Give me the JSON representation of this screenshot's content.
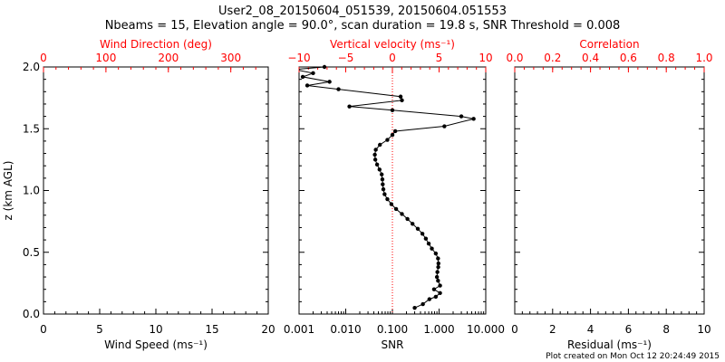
{
  "header": {
    "title_line1": "User2_08_20150604_051539, 20150604.051553",
    "title_line2": "Nbeams = 15, Elevation angle = 90.0°, scan duration = 19.8 s, SNR Threshold = 0.008"
  },
  "footer": {
    "plot_created": "Plot created on Mon Oct 12 20:24:49 2015"
  },
  "colors": {
    "axis": "#000000",
    "top_axis": "#ff0000",
    "reference_line": "#ff0000"
  },
  "chart_data": [
    {
      "type": "scatter",
      "panel": "left",
      "ylabel": "z (km AGL)",
      "ylim": [
        0,
        2.0
      ],
      "yticks": [
        "0.0",
        "0.5",
        "1.0",
        "1.5",
        "2.0"
      ],
      "xlabel": "Wind Speed (ms⁻¹)",
      "xlim": [
        0,
        20
      ],
      "xticks": [
        "0",
        "5",
        "10",
        "15",
        "20"
      ],
      "top_xlabel": "Wind Direction (deg)",
      "top_xlim": [
        0,
        360
      ],
      "top_xticks": [
        "0",
        "100",
        "200",
        "300"
      ],
      "series": []
    },
    {
      "type": "line",
      "panel": "middle",
      "ylim": [
        0,
        2.0
      ],
      "xlabel": "SNR",
      "xscale": "log",
      "xlim": [
        0.001,
        10
      ],
      "xticks": [
        "0.001",
        "0.010",
        "0.100",
        "1.000",
        "10.000"
      ],
      "top_xlabel": "Vertical velocity (ms⁻¹)",
      "top_xlim": [
        -10,
        10
      ],
      "top_xticks": [
        "−10",
        "−5",
        "0",
        "5",
        "10"
      ],
      "reference_line_x": 0.1,
      "series": [
        {
          "axis": "SNR",
          "points": [
            [
              0.3,
              0.05
            ],
            [
              0.45,
              0.08
            ],
            [
              0.62,
              0.12
            ],
            [
              0.85,
              0.14
            ],
            [
              1.05,
              0.17
            ],
            [
              0.78,
              0.2
            ],
            [
              1.05,
              0.23
            ],
            [
              0.95,
              0.27
            ],
            [
              0.9,
              0.3
            ],
            [
              0.92,
              0.34
            ],
            [
              0.96,
              0.38
            ],
            [
              0.97,
              0.41
            ],
            [
              0.95,
              0.45
            ],
            [
              0.85,
              0.49
            ],
            [
              0.7,
              0.53
            ],
            [
              0.6,
              0.57
            ],
            [
              0.52,
              0.61
            ],
            [
              0.44,
              0.65
            ],
            [
              0.35,
              0.69
            ],
            [
              0.27,
              0.73
            ],
            [
              0.21,
              0.77
            ],
            [
              0.16,
              0.81
            ],
            [
              0.12,
              0.85
            ],
            [
              0.095,
              0.89
            ],
            [
              0.078,
              0.93
            ],
            [
              0.068,
              0.97
            ],
            [
              0.064,
              1.01
            ],
            [
              0.062,
              1.05
            ],
            [
              0.061,
              1.09
            ],
            [
              0.059,
              1.13
            ],
            [
              0.053,
              1.17
            ],
            [
              0.047,
              1.21
            ],
            [
              0.043,
              1.25
            ],
            [
              0.042,
              1.29
            ],
            [
              0.044,
              1.33
            ],
            [
              0.054,
              1.37
            ],
            [
              0.078,
              1.41
            ],
            [
              0.1,
              1.45
            ],
            [
              0.115,
              1.48
            ],
            [
              1.3,
              1.52
            ],
            [
              5.5,
              1.58
            ],
            [
              3.0,
              1.6
            ],
            [
              0.1,
              1.65
            ],
            [
              0.012,
              1.68
            ],
            [
              0.16,
              1.73
            ],
            [
              0.15,
              1.76
            ],
            [
              0.007,
              1.82
            ],
            [
              0.0015,
              1.85
            ],
            [
              0.0045,
              1.88
            ],
            [
              0.0012,
              1.92
            ],
            [
              0.002,
              1.95
            ],
            [
              0.0008,
              1.98
            ],
            [
              0.0035,
              2.0
            ]
          ]
        }
      ]
    },
    {
      "type": "scatter",
      "panel": "right",
      "ylim": [
        0,
        2.0
      ],
      "xlabel": "Residual (ms⁻¹)",
      "xlim": [
        0,
        10
      ],
      "xticks": [
        "0",
        "2",
        "4",
        "6",
        "8",
        "10"
      ],
      "top_xlabel": "Correlation",
      "top_xlim": [
        0,
        1
      ],
      "top_xticks": [
        "0.0",
        "0.2",
        "0.4",
        "0.6",
        "0.8",
        "1.0"
      ],
      "series": []
    }
  ]
}
